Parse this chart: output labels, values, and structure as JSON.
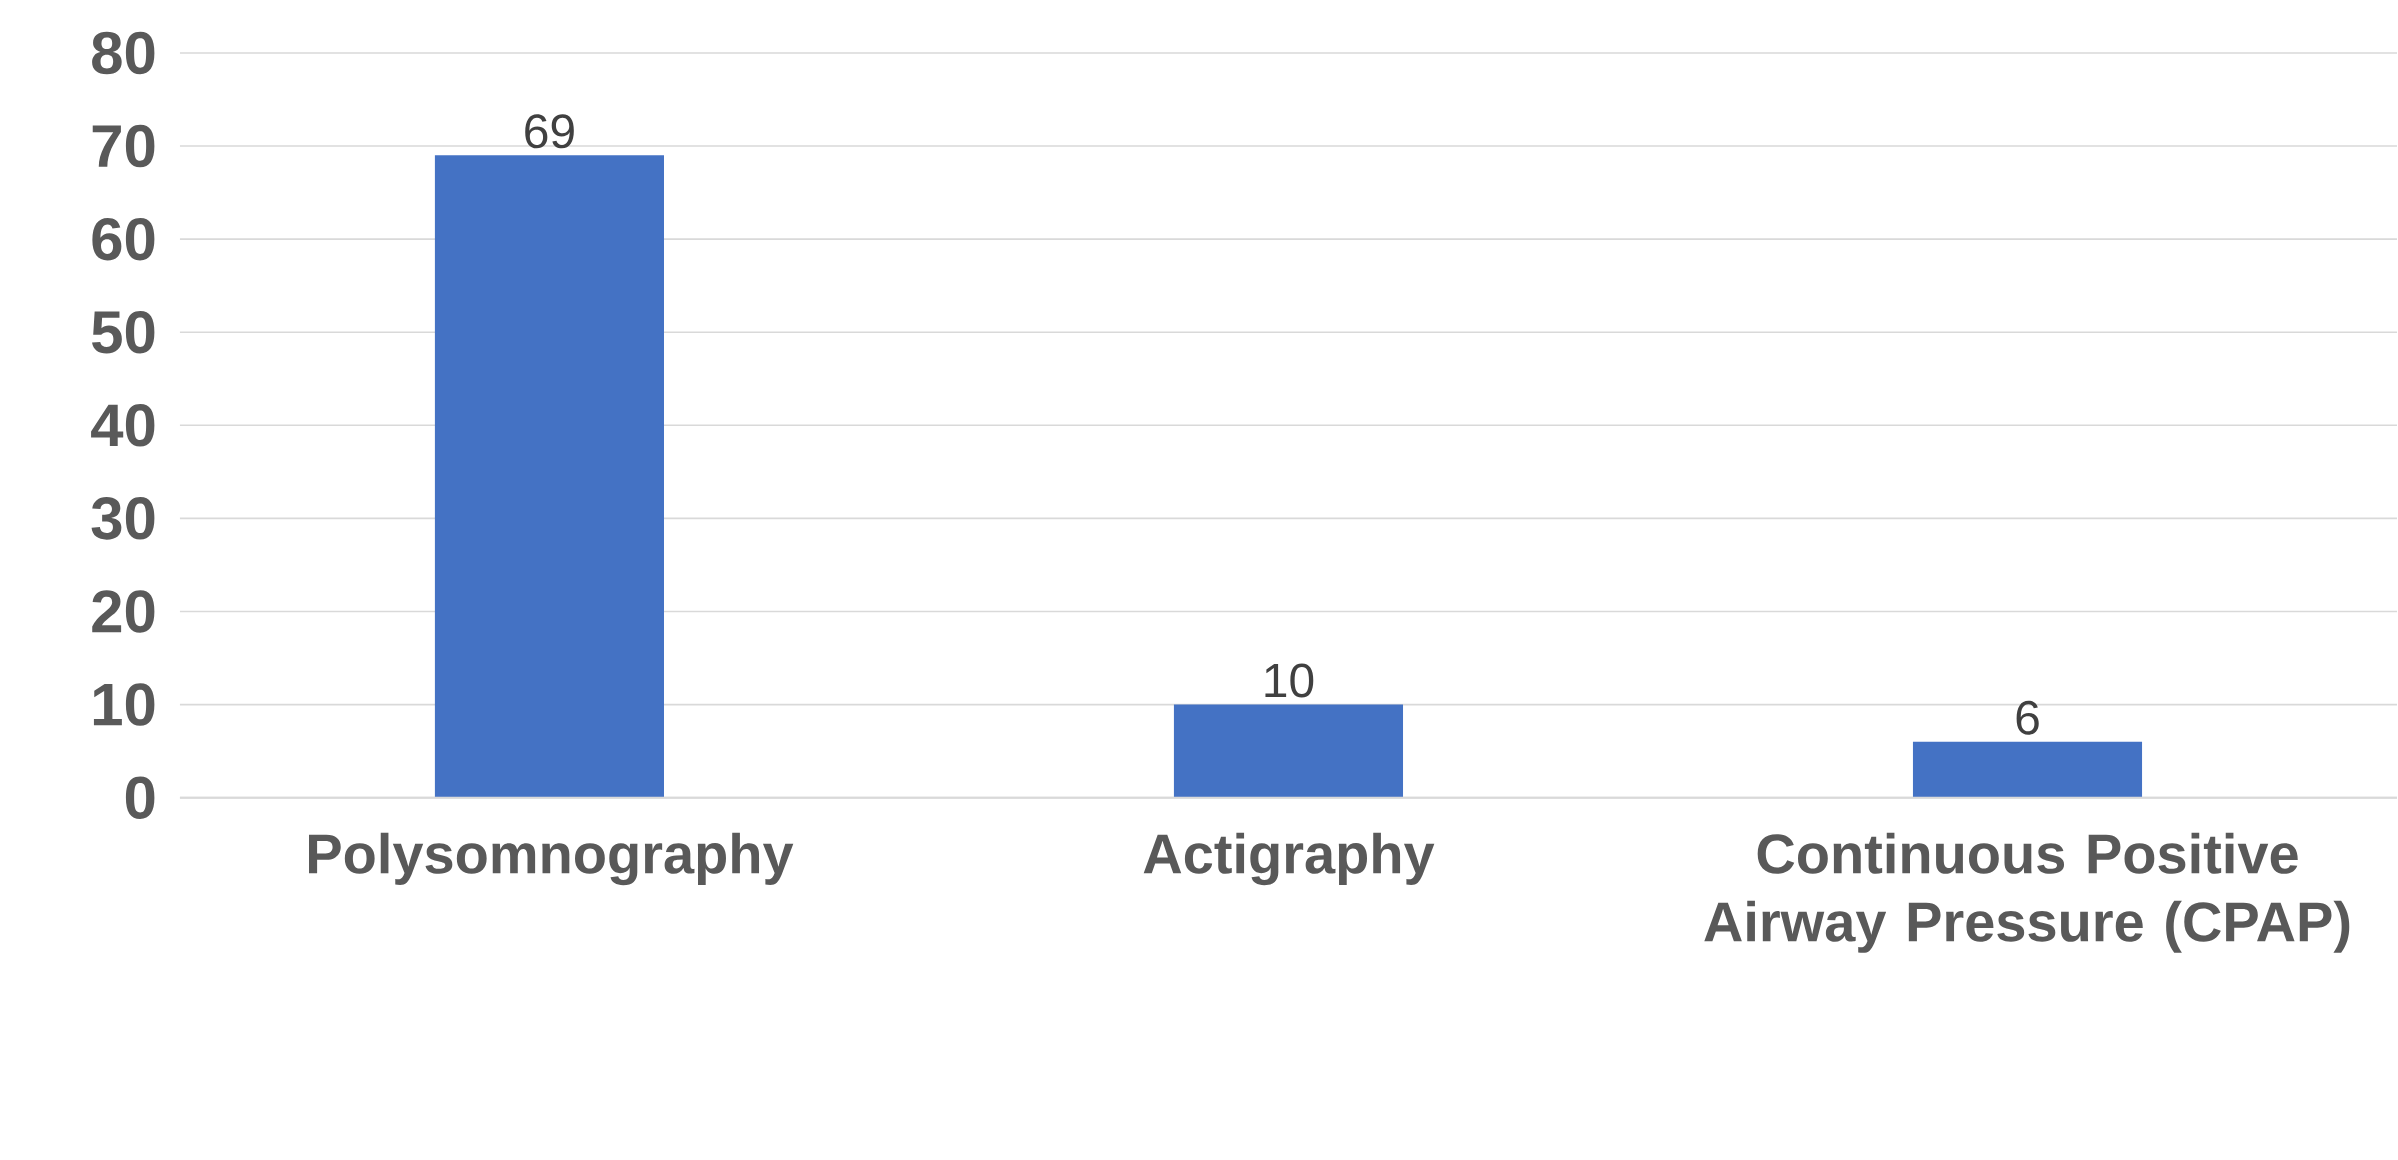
{
  "chart_data": {
    "type": "bar",
    "categories": [
      "Polysomnography",
      "Actigraphy",
      "Continuous Positive Airway Pressure (CPAP)"
    ],
    "values": [
      69,
      10,
      6
    ],
    "color": "#4472c4",
    "ylim": [
      0,
      80
    ],
    "yticks": [
      0,
      10,
      20,
      30,
      40,
      50,
      60,
      70,
      80
    ],
    "grid": "y",
    "data_labels": true
  }
}
